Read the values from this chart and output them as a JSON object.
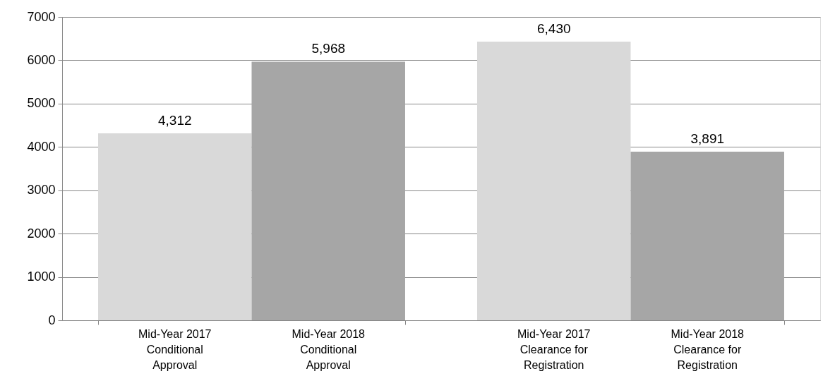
{
  "chart_data": {
    "type": "bar",
    "categories": [
      "Mid-Year 2017 Conditional Approval",
      "Mid-Year 2018 Conditional Approval",
      "Mid-Year 2017 Clearance for Registration",
      "Mid-Year 2018 Clearance for Registration"
    ],
    "values": [
      4312,
      5968,
      6430,
      3891
    ],
    "colors": [
      "#d9d9d9",
      "#a6a6a6",
      "#d9d9d9",
      "#a6a6a6"
    ],
    "value_labels": [
      "4,312",
      "5,968",
      "6,430",
      "3,891"
    ],
    "ylim": [
      0,
      7000
    ],
    "yticks": [
      0,
      1000,
      2000,
      3000,
      4000,
      5000,
      6000,
      7000
    ],
    "grid": "y"
  }
}
